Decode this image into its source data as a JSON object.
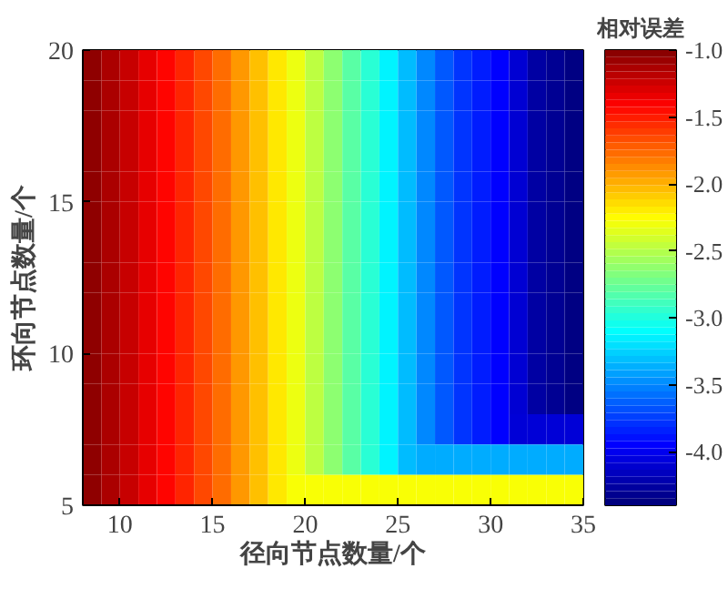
{
  "chart_data": {
    "type": "heatmap",
    "xlabel": "径向节点数量/个",
    "ylabel": "环向节点数量/个",
    "clabel": "相对误差",
    "xlim": [
      8,
      35
    ],
    "ylim": [
      5,
      20
    ],
    "xticks": [
      10,
      15,
      20,
      25,
      30,
      35
    ],
    "yticks": [
      5,
      10,
      15,
      20
    ],
    "clim": [
      -4.4,
      -1.0
    ],
    "cticks": [
      {
        "value": -1.0,
        "label": "-1.0"
      },
      {
        "value": -1.5,
        "label": "-1.5"
      },
      {
        "value": -2.0,
        "label": "-2.0"
      },
      {
        "value": -2.5,
        "label": "-2.5"
      },
      {
        "value": -3.0,
        "label": "-3.0"
      },
      {
        "value": -3.5,
        "label": "-3.5"
      },
      {
        "value": -4.0,
        "label": "-4.0"
      }
    ],
    "x": [
      8.5,
      9.5,
      10.5,
      11.5,
      12.5,
      13.5,
      14.5,
      15.5,
      16.5,
      17.5,
      18.5,
      19.5,
      20.5,
      21.5,
      22.5,
      23.5,
      24.5,
      25.5,
      26.5,
      27.5,
      28.5,
      29.5,
      30.5,
      31.5,
      32.5,
      33.5,
      34.5
    ],
    "y": [
      19.5,
      18.5,
      17.5,
      16.5,
      15.5,
      14.5,
      13.5,
      12.5,
      11.5,
      10.5,
      9.5,
      8.5,
      7.5,
      6.5,
      5.5
    ],
    "cells": [
      [
        -1.06,
        -1.15,
        -1.25,
        -1.35,
        -1.44,
        -1.55,
        -1.67,
        -1.79,
        -1.93,
        -2.07,
        -2.2,
        -2.34,
        -2.49,
        -2.66,
        -2.83,
        -2.98,
        -3.16,
        -3.34,
        -3.52,
        -3.67,
        -3.8,
        -3.88,
        -3.97,
        -4.12,
        -4.28,
        -4.33,
        -4.38
      ],
      [
        -1.06,
        -1.15,
        -1.25,
        -1.35,
        -1.44,
        -1.55,
        -1.67,
        -1.79,
        -1.93,
        -2.07,
        -2.2,
        -2.34,
        -2.49,
        -2.66,
        -2.83,
        -2.98,
        -3.16,
        -3.34,
        -3.52,
        -3.67,
        -3.8,
        -3.88,
        -3.97,
        -4.12,
        -4.28,
        -4.33,
        -4.38
      ],
      [
        -1.06,
        -1.15,
        -1.25,
        -1.35,
        -1.44,
        -1.55,
        -1.67,
        -1.79,
        -1.93,
        -2.07,
        -2.2,
        -2.34,
        -2.49,
        -2.66,
        -2.83,
        -2.98,
        -3.16,
        -3.34,
        -3.52,
        -3.67,
        -3.8,
        -3.88,
        -3.97,
        -4.12,
        -4.28,
        -4.33,
        -4.38
      ],
      [
        -1.06,
        -1.15,
        -1.25,
        -1.35,
        -1.44,
        -1.55,
        -1.67,
        -1.79,
        -1.93,
        -2.07,
        -2.2,
        -2.34,
        -2.49,
        -2.66,
        -2.83,
        -2.98,
        -3.16,
        -3.34,
        -3.52,
        -3.67,
        -3.8,
        -3.88,
        -3.97,
        -4.12,
        -4.28,
        -4.33,
        -4.38
      ],
      [
        -1.06,
        -1.15,
        -1.25,
        -1.35,
        -1.44,
        -1.55,
        -1.67,
        -1.79,
        -1.93,
        -2.07,
        -2.2,
        -2.34,
        -2.49,
        -2.66,
        -2.83,
        -2.98,
        -3.16,
        -3.34,
        -3.52,
        -3.67,
        -3.8,
        -3.88,
        -3.97,
        -4.12,
        -4.28,
        -4.33,
        -4.38
      ],
      [
        -1.06,
        -1.15,
        -1.25,
        -1.35,
        -1.44,
        -1.55,
        -1.67,
        -1.79,
        -1.93,
        -2.07,
        -2.2,
        -2.34,
        -2.49,
        -2.66,
        -2.83,
        -2.98,
        -3.16,
        -3.34,
        -3.52,
        -3.67,
        -3.8,
        -3.88,
        -3.97,
        -4.12,
        -4.28,
        -4.33,
        -4.38
      ],
      [
        -1.06,
        -1.15,
        -1.25,
        -1.35,
        -1.44,
        -1.55,
        -1.67,
        -1.79,
        -1.93,
        -2.07,
        -2.2,
        -2.34,
        -2.49,
        -2.66,
        -2.83,
        -2.98,
        -3.16,
        -3.34,
        -3.52,
        -3.67,
        -3.8,
        -3.88,
        -3.97,
        -4.12,
        -4.28,
        -4.33,
        -4.38
      ],
      [
        -1.06,
        -1.15,
        -1.25,
        -1.35,
        -1.44,
        -1.55,
        -1.67,
        -1.79,
        -1.93,
        -2.07,
        -2.2,
        -2.34,
        -2.49,
        -2.66,
        -2.83,
        -2.98,
        -3.16,
        -3.34,
        -3.52,
        -3.67,
        -3.8,
        -3.88,
        -3.97,
        -4.12,
        -4.28,
        -4.33,
        -4.38
      ],
      [
        -1.06,
        -1.15,
        -1.25,
        -1.35,
        -1.44,
        -1.55,
        -1.67,
        -1.79,
        -1.93,
        -2.07,
        -2.2,
        -2.34,
        -2.49,
        -2.66,
        -2.83,
        -2.98,
        -3.16,
        -3.34,
        -3.52,
        -3.67,
        -3.8,
        -3.88,
        -3.97,
        -4.12,
        -4.28,
        -4.33,
        -4.38
      ],
      [
        -1.06,
        -1.15,
        -1.25,
        -1.35,
        -1.44,
        -1.55,
        -1.67,
        -1.79,
        -1.93,
        -2.07,
        -2.2,
        -2.34,
        -2.49,
        -2.66,
        -2.83,
        -2.98,
        -3.16,
        -3.34,
        -3.52,
        -3.67,
        -3.8,
        -3.88,
        -3.97,
        -4.12,
        -4.28,
        -4.33,
        -4.38
      ],
      [
        -1.06,
        -1.15,
        -1.25,
        -1.35,
        -1.44,
        -1.55,
        -1.67,
        -1.79,
        -1.93,
        -2.07,
        -2.2,
        -2.34,
        -2.49,
        -2.66,
        -2.83,
        -2.98,
        -3.16,
        -3.34,
        -3.52,
        -3.67,
        -3.8,
        -3.88,
        -3.97,
        -4.12,
        -4.28,
        -4.33,
        -4.38
      ],
      [
        -1.06,
        -1.15,
        -1.25,
        -1.35,
        -1.44,
        -1.55,
        -1.67,
        -1.79,
        -1.93,
        -2.07,
        -2.2,
        -2.34,
        -2.49,
        -2.66,
        -2.83,
        -2.98,
        -3.16,
        -3.34,
        -3.52,
        -3.67,
        -3.8,
        -3.88,
        -3.97,
        -4.12,
        -4.28,
        -4.33,
        -4.38
      ],
      [
        -1.06,
        -1.15,
        -1.25,
        -1.35,
        -1.44,
        -1.55,
        -1.67,
        -1.79,
        -1.93,
        -2.07,
        -2.2,
        -2.34,
        -2.49,
        -2.66,
        -2.83,
        -2.98,
        -3.16,
        -3.34,
        -3.52,
        -3.67,
        -3.8,
        -3.88,
        -3.97,
        -4.1,
        -4.1,
        -4.1,
        -4.1
      ],
      [
        -1.06,
        -1.15,
        -1.25,
        -1.35,
        -1.44,
        -1.55,
        -1.67,
        -1.79,
        -1.93,
        -2.07,
        -2.2,
        -2.34,
        -2.49,
        -2.66,
        -2.83,
        -2.98,
        -3.16,
        -3.34,
        -3.4,
        -3.4,
        -3.4,
        -3.4,
        -3.4,
        -3.4,
        -3.4,
        -3.4,
        -3.4
      ],
      [
        -1.06,
        -1.15,
        -1.25,
        -1.35,
        -1.44,
        -1.55,
        -1.67,
        -1.79,
        -1.93,
        -2.07,
        -2.2,
        -2.3,
        -2.3,
        -2.3,
        -2.3,
        -2.3,
        -2.3,
        -2.3,
        -2.3,
        -2.3,
        -2.3,
        -2.3,
        -2.3,
        -2.3,
        -2.3,
        -2.3,
        -2.3
      ]
    ]
  }
}
